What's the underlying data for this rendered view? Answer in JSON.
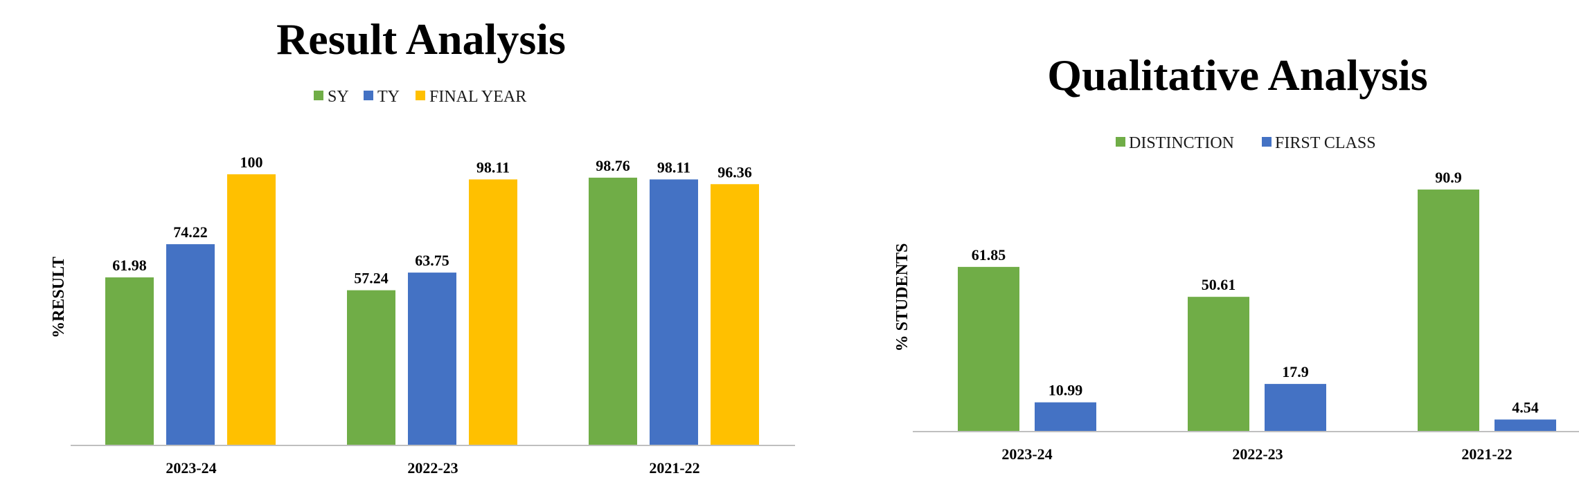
{
  "chart_data": [
    {
      "type": "bar",
      "title": "Result Analysis",
      "ylabel": "%RESULT",
      "xlabel": "",
      "categories": [
        "2023-24",
        "2022-23",
        "2021-22"
      ],
      "ylim": [
        0,
        100
      ],
      "grid": false,
      "legend_position": "top",
      "series": [
        {
          "name": "SY",
          "color": "#70ad47",
          "values": [
            61.98,
            57.24,
            98.76
          ]
        },
        {
          "name": "TY",
          "color": "#4472c4",
          "values": [
            74.22,
            63.75,
            98.11
          ]
        },
        {
          "name": "FINAL YEAR",
          "color": "#ffc000",
          "values": [
            100,
            98.11,
            96.36
          ]
        }
      ]
    },
    {
      "type": "bar",
      "title": "Qualitative Analysis",
      "ylabel": "% STUDENTS",
      "xlabel": "",
      "categories": [
        "2023-24",
        "2022-23",
        "2021-22"
      ],
      "ylim": [
        0,
        100
      ],
      "grid": false,
      "legend_position": "top",
      "series": [
        {
          "name": "DISTINCTION",
          "color": "#70ad47",
          "values": [
            61.85,
            50.61,
            90.9
          ]
        },
        {
          "name": "FIRST CLASS",
          "color": "#4472c4",
          "values": [
            10.99,
            17.9,
            4.54
          ]
        }
      ]
    }
  ]
}
